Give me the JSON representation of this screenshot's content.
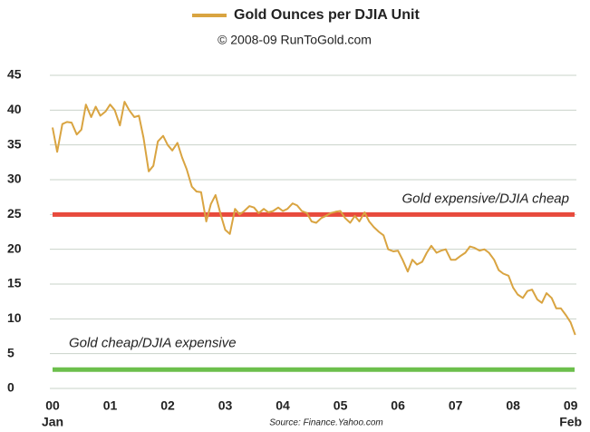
{
  "chart_data": {
    "type": "line",
    "title": "Gold Ounces per DJIA Unit",
    "subtitle": "© 2008-09 RunToGold.com",
    "source": "Source: Finance.Yahoo.com",
    "x": [
      0,
      0.08,
      0.17,
      0.25,
      0.33,
      0.42,
      0.5,
      0.58,
      0.67,
      0.75,
      0.83,
      0.92,
      1,
      1.08,
      1.17,
      1.25,
      1.33,
      1.42,
      1.5,
      1.58,
      1.67,
      1.75,
      1.83,
      1.92,
      2,
      2.08,
      2.17,
      2.25,
      2.33,
      2.42,
      2.5,
      2.58,
      2.67,
      2.75,
      2.83,
      2.92,
      3,
      3.08,
      3.17,
      3.25,
      3.33,
      3.42,
      3.5,
      3.58,
      3.67,
      3.75,
      3.83,
      3.92,
      4,
      4.08,
      4.17,
      4.25,
      4.33,
      4.42,
      4.5,
      4.58,
      4.67,
      4.75,
      4.83,
      4.92,
      5,
      5.08,
      5.17,
      5.25,
      5.33,
      5.42,
      5.5,
      5.58,
      5.67,
      5.75,
      5.83,
      5.92,
      6,
      6.08,
      6.17,
      6.25,
      6.33,
      6.42,
      6.5,
      6.58,
      6.67,
      6.75,
      6.83,
      6.92,
      7,
      7.08,
      7.17,
      7.25,
      7.33,
      7.42,
      7.5,
      7.58,
      7.67,
      7.75,
      7.83,
      7.92,
      8,
      8.08,
      8.17,
      8.25,
      8.33,
      8.42,
      8.5,
      8.58,
      8.67,
      8.75,
      8.83,
      8.92,
      9,
      9.08
    ],
    "series": [
      {
        "name": "Gold Ounces per DJIA Unit",
        "color": "#d9a441",
        "values": [
          37.5,
          34,
          38,
          38.3,
          38.2,
          36.5,
          37.2,
          40.8,
          39,
          40.5,
          39.2,
          39.8,
          40.8,
          40,
          37.8,
          41.2,
          40,
          39,
          39.2,
          36,
          31.2,
          32,
          35.5,
          36.3,
          35,
          34.2,
          35.3,
          33.2,
          31.5,
          29,
          28.3,
          28.2,
          24,
          26.5,
          27.8,
          25,
          22.8,
          22.2,
          25.8,
          25,
          25.5,
          26.2,
          26,
          25.2,
          25.8,
          25.3,
          25.5,
          26,
          25.5,
          25.8,
          26.6,
          26.3,
          25.5,
          25.2,
          24,
          23.8,
          24.5,
          24.8,
          25.2,
          25.4,
          25.5,
          24.5,
          23.8,
          24.8,
          24,
          25.3,
          24,
          23.2,
          22.5,
          22,
          20,
          19.7,
          19.8,
          18.5,
          16.8,
          18.5,
          17.8,
          18.2,
          19.5,
          20.5,
          19.5,
          19.8,
          20,
          18.5,
          18.5,
          19,
          19.5,
          20.4,
          20.2,
          19.8,
          20,
          19.5,
          18.5,
          17,
          16.5,
          16.2,
          14.5,
          13.5,
          13,
          14,
          14.2,
          12.8,
          12.3,
          13.7,
          13,
          11.5,
          11.5,
          10.5,
          9.5,
          7.7
        ]
      }
    ],
    "reference_lines": [
      {
        "value": 25,
        "color": "#e84a3c",
        "label": "Gold expensive/DJIA cheap"
      },
      {
        "value": 2.7,
        "color": "#6cbf4c",
        "label": "Gold cheap/DJIA expensive"
      }
    ],
    "xlim": [
      0,
      9.1
    ],
    "xticks": [
      {
        "value": 0,
        "label": "00"
      },
      {
        "value": 1,
        "label": "01"
      },
      {
        "value": 2,
        "label": "02"
      },
      {
        "value": 3,
        "label": "03"
      },
      {
        "value": 4,
        "label": "04"
      },
      {
        "value": 5,
        "label": "05"
      },
      {
        "value": 6,
        "label": "06"
      },
      {
        "value": 7,
        "label": "07"
      },
      {
        "value": 8,
        "label": "08"
      },
      {
        "value": 9,
        "label": "09"
      }
    ],
    "x_sublabels": [
      {
        "value": 0,
        "label": "Jan"
      },
      {
        "value": 9,
        "label": "Feb"
      }
    ],
    "ylim": [
      0,
      45
    ],
    "yticks": [
      0,
      5,
      10,
      15,
      20,
      25,
      30,
      35,
      40,
      45
    ],
    "grid": true
  }
}
